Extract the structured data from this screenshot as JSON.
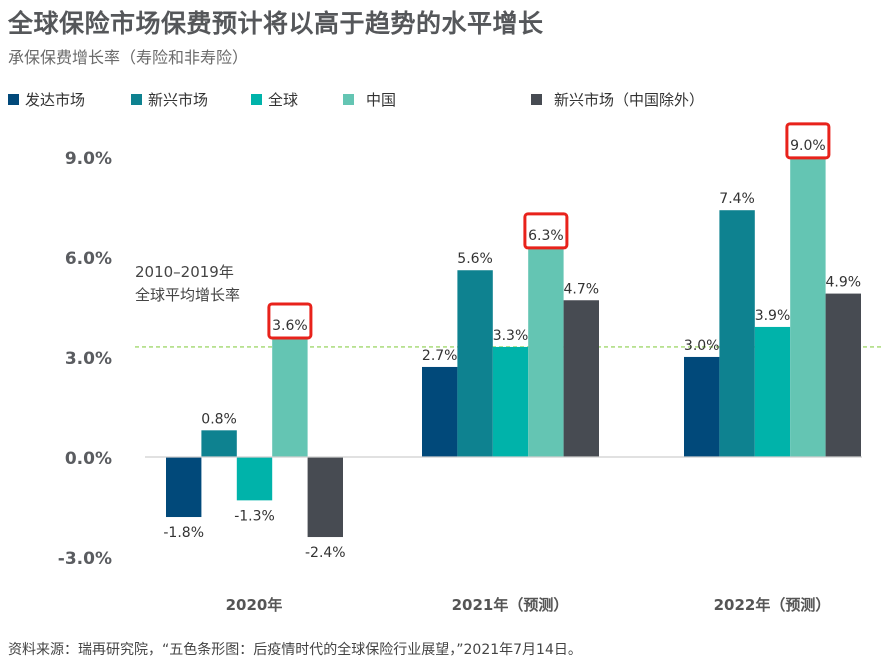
{
  "header": {
    "title": "全球保险市场保费预计将以高于趋势的水平增长",
    "subtitle": "承保保费增长率（寿险和非寿险）"
  },
  "legend": [
    {
      "label": "发达市场",
      "color": "#01497a"
    },
    {
      "label": "新兴市场",
      "color": "#0e8290"
    },
    {
      "label": "全球",
      "color": "#00b3aa"
    },
    {
      "label": "中国",
      "color": "#64c5b3"
    },
    {
      "label": "新兴市场（中国除外）",
      "color": "#474b52"
    }
  ],
  "chart_data": {
    "type": "bar",
    "title": "全球保险市场保费预计将以高于趋势的水平增长",
    "subtitle": "承保保费增长率（寿险和非寿险）",
    "xlabel": "",
    "ylabel": "",
    "categories": [
      "2020年",
      "2021年（预测）",
      "2022年（预测）"
    ],
    "series": [
      {
        "name": "发达市场",
        "color": "#01497a",
        "values": [
          -1.8,
          2.7,
          3.0
        ],
        "labels": [
          "-1.8%",
          "2.7%",
          "3.0%"
        ]
      },
      {
        "name": "新兴市场",
        "color": "#0e8290",
        "values": [
          0.8,
          5.6,
          7.4
        ],
        "labels": [
          "0.8%",
          "5.6%",
          "7.4%"
        ]
      },
      {
        "name": "全球",
        "color": "#00b3aa",
        "values": [
          -1.3,
          3.3,
          3.9
        ],
        "labels": [
          "-1.3%",
          "3.3%",
          "3.9%"
        ]
      },
      {
        "name": "中国",
        "color": "#64c5b3",
        "values": [
          3.6,
          6.3,
          9.0
        ],
        "labels": [
          "3.6%",
          "6.3%",
          "9.0%"
        ],
        "highlighted": true
      },
      {
        "name": "新兴市场（中国除外）",
        "color": "#474b52",
        "values": [
          -2.4,
          4.7,
          4.9
        ],
        "labels": [
          "-2.4%",
          "4.7%",
          "4.9%"
        ]
      }
    ],
    "ylim": [
      -3.0,
      9.0
    ],
    "yticks": [
      -3.0,
      0.0,
      3.0,
      6.0,
      9.0
    ],
    "ytick_labels": [
      "-3.0%",
      "0.0%",
      "3.0%",
      "6.0%",
      "9.0%"
    ],
    "grid": false,
    "legend_position": "top-left",
    "reference_line": {
      "value": 3.3,
      "label_line1": "2010–2019年",
      "label_line2": "全球平均增长率",
      "color": "#8ccf4d"
    },
    "highlight_color": "#e8221b"
  },
  "footer": {
    "source": "资料来源：瑞再研究院，“五色条形图：后疫情时代的全球保险行业展望，”2021年7月14日。"
  }
}
